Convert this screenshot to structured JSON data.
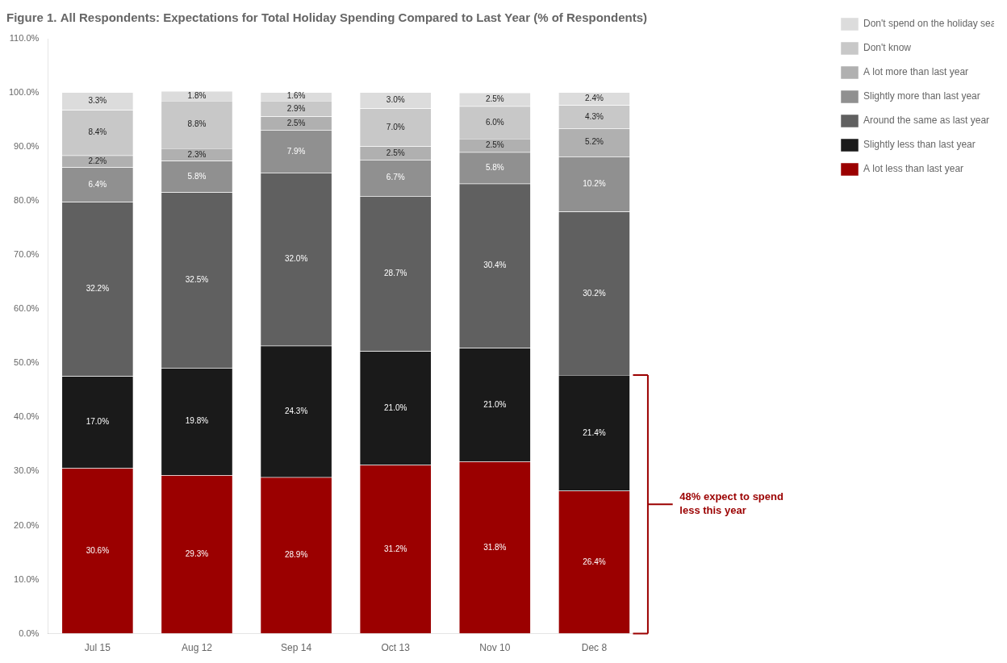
{
  "chart_data": {
    "type": "bar",
    "title": "Figure 1. All Respondents: Expectations for Total Holiday Spending Compared to Last Year (% of Respondents)",
    "categories": [
      "Jul 15",
      "Aug 12",
      "Sep 14",
      "Oct 13",
      "Nov 10",
      "Dec 8"
    ],
    "stacked": true,
    "data_labels": true,
    "grid": false,
    "legend": "right",
    "ylim": [
      0,
      110
    ],
    "yticks": [
      {
        "value": 0,
        "label": "0.0%"
      },
      {
        "value": 10,
        "label": "10.0%"
      },
      {
        "value": 20,
        "label": "20.0%"
      },
      {
        "value": 30,
        "label": "30.0%"
      },
      {
        "value": 40,
        "label": "40.0%"
      },
      {
        "value": 50,
        "label": "50.0%"
      },
      {
        "value": 60,
        "label": "60.0%"
      },
      {
        "value": 70,
        "label": "70.0%"
      },
      {
        "value": 80,
        "label": "80.0%"
      },
      {
        "value": 90,
        "label": "90.0%"
      },
      {
        "value": 100,
        "label": "100.0%"
      },
      {
        "value": 110,
        "label": "110.0%"
      }
    ],
    "series": [
      {
        "name": "A lot less than last year",
        "color": "#9B0000",
        "values": [
          30.6,
          29.3,
          28.9,
          31.2,
          31.8,
          26.4
        ],
        "value_labels": [
          "30.6%",
          "29.3%",
          "28.9%",
          "31.2%",
          "31.8%",
          "26.4%"
        ]
      },
      {
        "name": "Slightly less than last year",
        "color": "#1a1a1a",
        "values": [
          17.0,
          19.8,
          24.3,
          21.0,
          21.0,
          21.4
        ],
        "value_labels": [
          "17.0%",
          "19.8%",
          "24.3%",
          "21.0%",
          "21.0%",
          "21.4%"
        ]
      },
      {
        "name": "Around the same as last year",
        "color": "#606060",
        "values": [
          32.2,
          32.5,
          32.0,
          28.7,
          30.4,
          30.2
        ],
        "value_labels": [
          "32.2%",
          "32.5%",
          "32.0%",
          "28.7%",
          "30.4%",
          "30.2%"
        ]
      },
      {
        "name": "Slightly more than last year",
        "color": "#909090",
        "values": [
          6.4,
          5.8,
          7.9,
          6.7,
          5.8,
          10.2
        ],
        "value_labels": [
          "6.4%",
          "5.8%",
          "7.9%",
          "6.7%",
          "5.8%",
          "10.2%"
        ]
      },
      {
        "name": "A lot more than last year",
        "color": "#b0b0b0",
        "values": [
          2.2,
          2.3,
          2.5,
          2.5,
          2.5,
          5.2
        ],
        "value_labels": [
          "2.2%",
          "2.3%",
          "2.5%",
          "2.5%",
          "2.5%",
          "5.2%"
        ]
      },
      {
        "name": "Don't know",
        "color": "#c8c8c8",
        "values": [
          8.4,
          8.8,
          2.9,
          7.0,
          6.0,
          4.3
        ],
        "value_labels": [
          "8.4%",
          "8.8%",
          "2.9%",
          "7.0%",
          "6.0%",
          "4.3%"
        ]
      },
      {
        "name": "Don't spend on the holiday season",
        "color": "#dcdcdc",
        "values": [
          3.3,
          1.8,
          1.6,
          3.0,
          2.5,
          2.4
        ],
        "value_labels": [
          "3.3%",
          "1.8%",
          "1.6%",
          "3.0%",
          "2.5%",
          "2.4%"
        ]
      }
    ],
    "annotation": {
      "text": "48% expect to spend\nless this year",
      "y_range": [
        0.0,
        47.8
      ],
      "color": "#9B0000"
    }
  }
}
